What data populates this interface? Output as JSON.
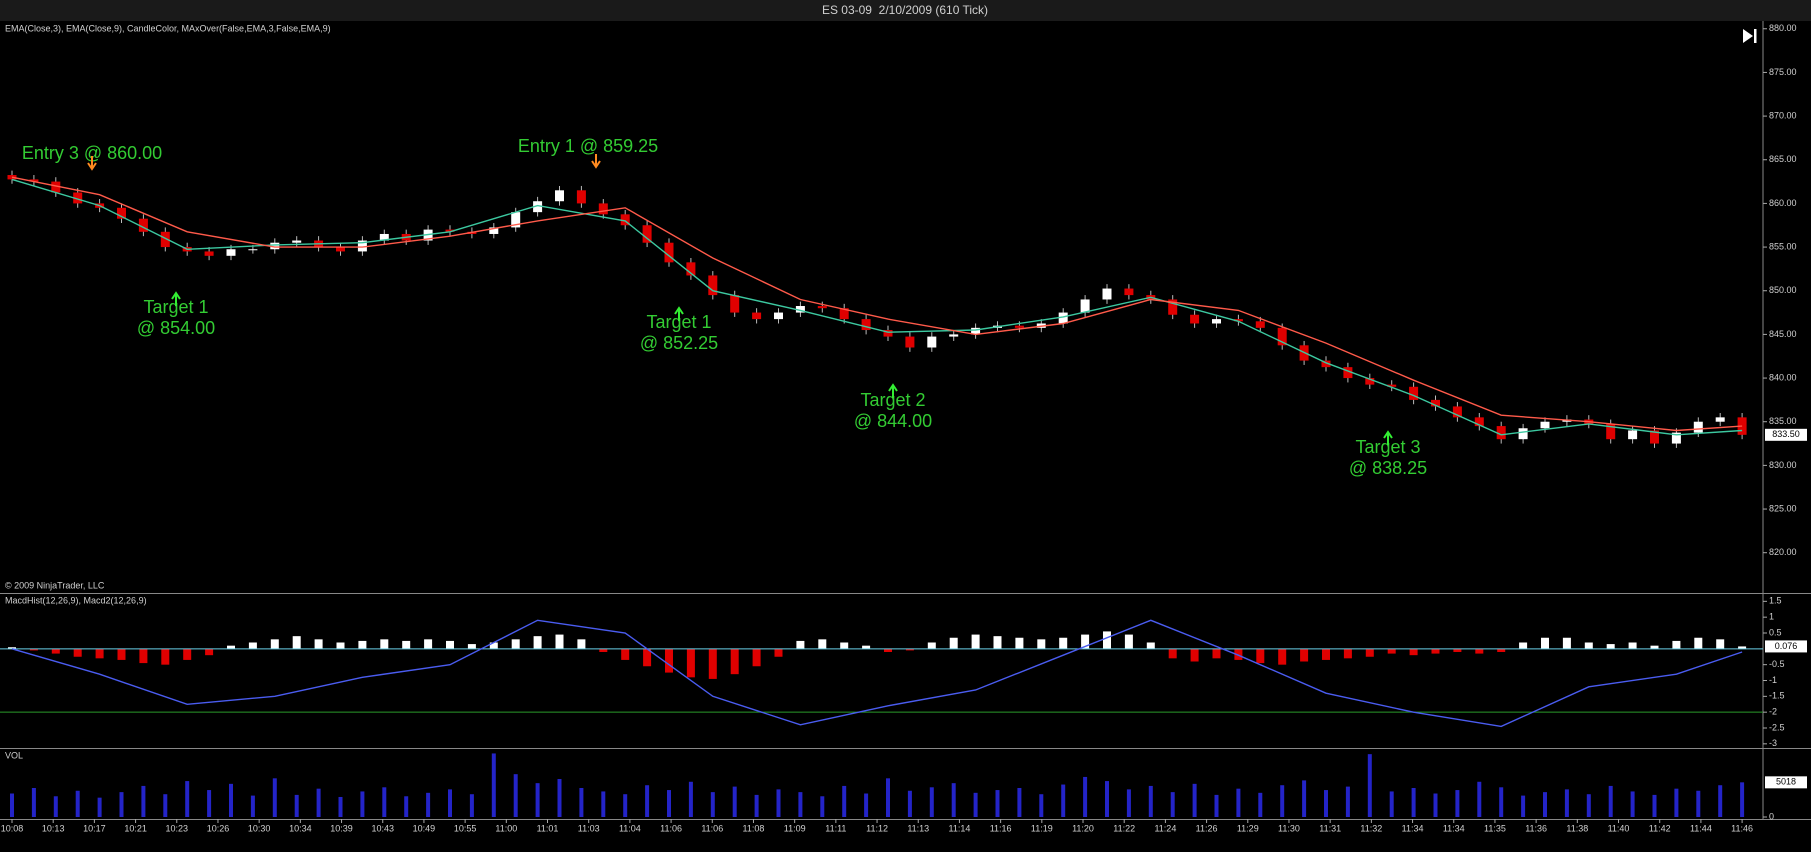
{
  "title": "ES 03-09  2/10/2009 (610 Tick)",
  "copyright": "© 2009 NinjaTrader, LLC",
  "x_labels": [
    "10:08",
    "10:13",
    "10:17",
    "10:21",
    "10:23",
    "10:26",
    "10:30",
    "10:34",
    "10:39",
    "10:43",
    "10:49",
    "10:55",
    "11:00",
    "11:01",
    "11:03",
    "11:04",
    "11:06",
    "11:06",
    "11:08",
    "11:09",
    "11:11",
    "11:12",
    "11:13",
    "11:14",
    "11:16",
    "11:19",
    "11:20",
    "11:22",
    "11:24",
    "11:26",
    "11:29",
    "11:30",
    "11:31",
    "11:32",
    "11:34",
    "11:34",
    "11:35",
    "11:36",
    "11:38",
    "11:40",
    "11:42",
    "11:44",
    "11:46"
  ],
  "chart_data": [
    {
      "type": "candlestick",
      "label": "EMA(Close,3), EMA(Close,9), CandleColor, MAxOver(False,EMA,3,False,EMA,9)",
      "up_color": "#ffffff",
      "down_color": "#e00000",
      "wick_color": "#bbbbbb",
      "open": [
        863.25,
        862.75,
        862.5,
        861.25,
        860.0,
        859.5,
        858.25,
        856.75,
        855.0,
        854.5,
        854.0,
        854.75,
        854.75,
        855.5,
        855.75,
        855.0,
        854.5,
        855.75,
        856.5,
        855.75,
        857.0,
        856.75,
        856.5,
        857.25,
        859.0,
        860.25,
        861.5,
        860.0,
        858.75,
        857.5,
        855.5,
        853.25,
        851.75,
        849.5,
        847.5,
        846.75,
        847.5,
        848.25,
        848.0,
        846.75,
        845.5,
        844.75,
        843.5,
        844.75,
        845.0,
        845.75,
        846.0,
        845.75,
        846.25,
        847.5,
        849.0,
        850.25,
        849.5,
        849.0,
        847.25,
        846.25,
        846.75,
        846.5,
        845.75,
        843.75,
        842.0,
        841.25,
        840.0,
        839.25,
        839.0,
        837.5,
        836.75,
        835.5,
        834.5,
        833.0,
        834.25,
        835.0,
        835.25,
        834.75,
        833.0,
        834.0,
        832.5,
        833.75,
        835.0,
        835.5
      ],
      "high": [
        863.75,
        863.25,
        863.0,
        861.75,
        860.5,
        860.0,
        858.75,
        857.25,
        855.5,
        855.0,
        855.25,
        855.25,
        856.0,
        856.25,
        856.25,
        855.5,
        856.25,
        857.0,
        857.0,
        857.5,
        857.5,
        857.25,
        857.75,
        859.5,
        860.75,
        862.0,
        862.0,
        860.5,
        859.25,
        858.0,
        856.0,
        853.75,
        852.25,
        850.0,
        848.0,
        848.0,
        848.75,
        848.75,
        848.5,
        847.25,
        846.0,
        845.25,
        845.25,
        845.5,
        846.25,
        846.5,
        846.5,
        846.75,
        848.0,
        849.5,
        850.75,
        850.75,
        850.0,
        849.5,
        847.75,
        847.25,
        847.25,
        847.0,
        846.25,
        844.25,
        842.5,
        841.75,
        840.5,
        839.75,
        839.5,
        838.0,
        837.25,
        836.0,
        835.0,
        834.75,
        835.5,
        835.75,
        835.75,
        835.25,
        834.5,
        834.5,
        834.25,
        835.5,
        836.0,
        836.0
      ],
      "low": [
        862.25,
        862.0,
        860.75,
        859.5,
        859.0,
        857.75,
        856.25,
        854.5,
        854.0,
        853.5,
        853.5,
        854.25,
        854.25,
        855.0,
        854.5,
        854.0,
        854.0,
        855.25,
        855.25,
        855.25,
        856.25,
        856.0,
        856.0,
        856.75,
        858.5,
        859.75,
        859.5,
        858.25,
        857.0,
        855.0,
        852.75,
        851.25,
        849.0,
        847.0,
        846.25,
        846.25,
        847.0,
        847.5,
        846.25,
        845.0,
        844.25,
        843.0,
        843.0,
        844.25,
        844.5,
        845.25,
        845.25,
        845.25,
        845.75,
        847.0,
        848.5,
        849.0,
        848.5,
        846.75,
        845.75,
        845.75,
        846.0,
        845.25,
        843.25,
        841.5,
        840.75,
        839.5,
        838.75,
        838.5,
        837.0,
        836.25,
        835.0,
        834.0,
        832.5,
        832.5,
        833.75,
        834.5,
        834.25,
        832.5,
        832.5,
        832.0,
        832.0,
        833.25,
        834.5,
        833.0
      ],
      "close": [
        862.75,
        862.5,
        861.25,
        860.0,
        859.5,
        858.25,
        856.75,
        855.0,
        854.5,
        854.0,
        854.75,
        854.75,
        855.5,
        855.75,
        855.0,
        854.5,
        855.75,
        856.5,
        855.75,
        857.0,
        856.75,
        856.5,
        857.25,
        859.0,
        860.25,
        861.5,
        860.0,
        858.75,
        857.5,
        855.5,
        853.25,
        851.75,
        849.5,
        847.5,
        846.75,
        847.5,
        848.25,
        848.0,
        846.75,
        845.5,
        844.75,
        843.5,
        844.75,
        845.0,
        845.75,
        846.0,
        845.75,
        846.25,
        847.5,
        849.0,
        850.25,
        849.5,
        849.0,
        847.25,
        846.25,
        846.75,
        846.5,
        845.75,
        843.75,
        842.0,
        841.25,
        840.0,
        839.25,
        839.0,
        837.5,
        836.75,
        835.5,
        834.5,
        833.0,
        834.25,
        835.0,
        835.25,
        834.75,
        833.0,
        834.0,
        832.5,
        833.75,
        835.0,
        835.5,
        833.5
      ],
      "lines": [
        {
          "color": "#3cc8a0",
          "x": [
            0,
            4,
            8,
            12,
            16,
            20,
            24,
            28,
            32,
            36,
            40,
            44,
            48,
            52,
            56,
            60,
            64,
            68,
            72,
            76,
            79
          ],
          "values": [
            862.75,
            859.75,
            854.75,
            855.25,
            855.5,
            856.75,
            859.75,
            858.0,
            850.0,
            847.75,
            845.25,
            845.5,
            847.0,
            849.25,
            846.5,
            841.75,
            838.0,
            833.5,
            834.75,
            833.5,
            834.0
          ]
        },
        {
          "color": "#ff5a4a",
          "x": [
            0,
            4,
            8,
            12,
            16,
            20,
            24,
            28,
            32,
            36,
            40,
            44,
            48,
            52,
            56,
            60,
            64,
            68,
            72,
            76,
            79
          ],
          "values": [
            863.0,
            861.0,
            856.75,
            855.0,
            855.0,
            856.25,
            858.0,
            859.5,
            853.75,
            849.0,
            846.75,
            845.0,
            846.25,
            849.0,
            847.75,
            844.0,
            839.75,
            835.75,
            835.0,
            834.0,
            834.5
          ]
        }
      ],
      "last_price": {
        "value": 833.5,
        "label": "833.50"
      },
      "ylim": [
        815.5,
        880.66
      ],
      "yticks": [
        {
          "value": 880,
          "label": "880.00"
        },
        {
          "value": 875,
          "label": "875.00"
        },
        {
          "value": 870,
          "label": "870.00"
        },
        {
          "value": 865,
          "label": "865.00"
        },
        {
          "value": 860,
          "label": "860.00"
        },
        {
          "value": 855,
          "label": "855.00"
        },
        {
          "value": 850,
          "label": "850.00"
        },
        {
          "value": 845,
          "label": "845.00"
        },
        {
          "value": 840,
          "label": "840.00"
        },
        {
          "value": 835,
          "label": "835.00"
        },
        {
          "value": 830,
          "label": "830.00"
        },
        {
          "value": 825,
          "label": "825.00"
        },
        {
          "value": 820,
          "label": "820.00"
        }
      ],
      "annotations": [
        [
          "Entry 3 @ 860.00"
        ],
        [
          "Entry 1 @ 859.25"
        ],
        [
          "Target 1",
          "@ 854.00"
        ],
        [
          "Target 1",
          "@ 852.25"
        ],
        [
          "Target 2",
          "@ 844.00"
        ],
        [
          "Target 3",
          "@ 838.25"
        ]
      ]
    },
    {
      "type": "macd",
      "label": "MacdHist(12,26,9), Macd2(12,26,9)",
      "pos_color": "#ffffff",
      "neg_color": "#e00000",
      "zero_color": "#6ad0e8",
      "values": [
        0.05,
        -0.05,
        -0.15,
        -0.25,
        -0.3,
        -0.35,
        -0.45,
        -0.5,
        -0.35,
        -0.2,
        0.1,
        0.2,
        0.3,
        0.4,
        0.3,
        0.2,
        0.25,
        0.3,
        0.25,
        0.3,
        0.25,
        0.15,
        0.2,
        0.3,
        0.4,
        0.45,
        0.3,
        -0.1,
        -0.35,
        -0.55,
        -0.75,
        -0.9,
        -0.95,
        -0.8,
        -0.55,
        -0.25,
        0.25,
        0.3,
        0.2,
        0.1,
        -0.1,
        -0.05,
        0.2,
        0.35,
        0.45,
        0.4,
        0.35,
        0.3,
        0.35,
        0.45,
        0.55,
        0.45,
        0.2,
        -0.3,
        -0.4,
        -0.3,
        -0.35,
        -0.45,
        -0.5,
        -0.4,
        -0.35,
        -0.3,
        -0.25,
        -0.15,
        -0.2,
        -0.15,
        -0.1,
        -0.15,
        -0.1,
        0.2,
        0.35,
        0.35,
        0.2,
        0.15,
        0.2,
        0.1,
        0.25,
        0.35,
        0.3,
        0.076
      ],
      "line": {
        "color": "#4a5cf0",
        "x": [
          0,
          4,
          8,
          12,
          16,
          20,
          24,
          28,
          32,
          36,
          40,
          44,
          48,
          52,
          56,
          60,
          64,
          68,
          72,
          76,
          79
        ],
        "values": [
          0.0,
          -0.8,
          -1.75,
          -1.5,
          -0.9,
          -0.5,
          0.9,
          0.5,
          -1.5,
          -2.4,
          -1.8,
          -1.3,
          -0.2,
          0.9,
          -0.2,
          -1.4,
          -2.0,
          -2.45,
          -1.2,
          -0.8,
          -0.1
        ]
      },
      "level": -2,
      "level_color": "#2a9a2a",
      "ylim": [
        -3.1,
        1.7
      ],
      "yticks": [
        1.5,
        1,
        0.5,
        -0.5,
        -1,
        -1.5,
        -2,
        -2.5,
        -3
      ]
    },
    {
      "type": "volume",
      "label": "VOL",
      "color": "#2424c8",
      "values": [
        3400,
        4200,
        3000,
        3800,
        2800,
        3600,
        4500,
        3300,
        5200,
        3900,
        4800,
        3100,
        5600,
        3200,
        4100,
        2900,
        3700,
        4300,
        3000,
        3500,
        4000,
        3300,
        9200,
        6200,
        4900,
        5500,
        4200,
        3700,
        3300,
        4600,
        3900,
        5100,
        3600,
        4400,
        3200,
        4000,
        3600,
        3000,
        4500,
        3400,
        5600,
        3800,
        4300,
        4900,
        3500,
        3900,
        4200,
        3300,
        4700,
        5800,
        5200,
        4000,
        4500,
        3600,
        4800,
        3200,
        4100,
        3500,
        4600,
        5300,
        3900,
        4400,
        9100,
        3700,
        4200,
        3400,
        3900,
        5100,
        4300,
        3100,
        3600,
        4000,
        3300,
        4500,
        3700,
        3200,
        4100,
        3800,
        4600,
        5018
      ],
      "ylim": [
        0,
        9700
      ],
      "yticks": [
        0
      ]
    }
  ]
}
